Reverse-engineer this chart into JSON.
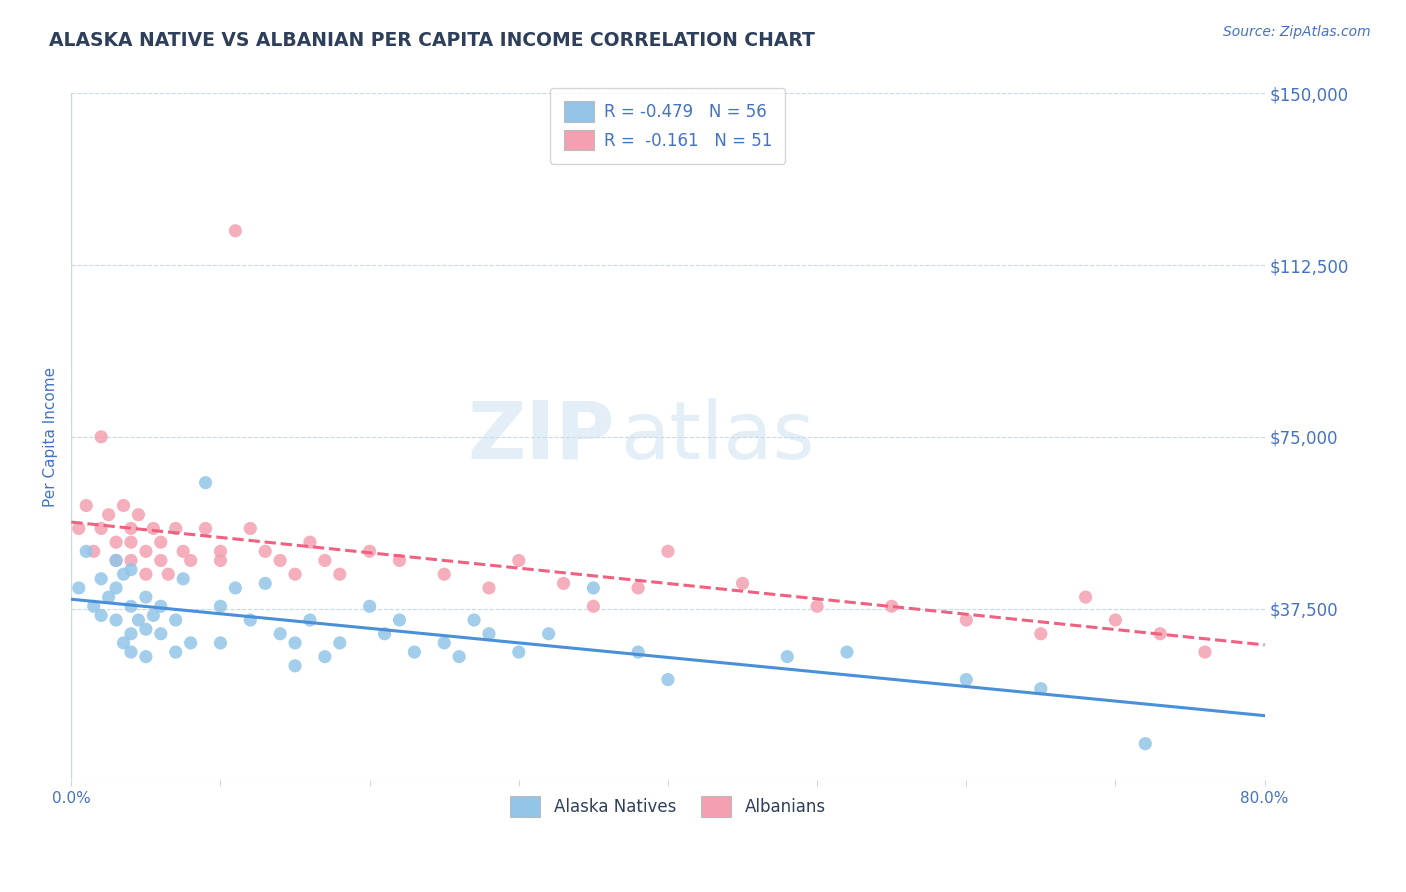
{
  "title": "ALASKA NATIVE VS ALBANIAN PER CAPITA INCOME CORRELATION CHART",
  "source_text": "Source: ZipAtlas.com",
  "watermark_zip": "ZIP",
  "watermark_atlas": "atlas",
  "xlabel": "",
  "ylabel": "Per Capita Income",
  "xlim": [
    0.0,
    0.8
  ],
  "ylim": [
    0,
    150000
  ],
  "yticks": [
    0,
    37500,
    75000,
    112500,
    150000
  ],
  "ytick_labels": [
    "",
    "$37,500",
    "$75,000",
    "$112,500",
    "$150,000"
  ],
  "xticks": [
    0.0,
    0.1,
    0.2,
    0.3,
    0.4,
    0.5,
    0.6,
    0.7,
    0.8
  ],
  "xtick_labels": [
    "0.0%",
    "",
    "",
    "",
    "",
    "",
    "",
    "",
    "80.0%"
  ],
  "alaska_color": "#92c5e8",
  "albanian_color": "#f4a0b0",
  "alaska_line_color": "#4a90d9",
  "albanian_line_color": "#f06080",
  "axis_color": "#4472c4",
  "title_color": "#2e3f5c",
  "grid_color": "#c8d8e8",
  "background_color": "#ffffff",
  "legend_text_color": "#4472c4",
  "R_alaska": -0.479,
  "N_alaska": 56,
  "R_albanian": -0.161,
  "N_albanian": 51,
  "alaska_x": [
    0.005,
    0.01,
    0.015,
    0.02,
    0.02,
    0.025,
    0.03,
    0.03,
    0.03,
    0.035,
    0.035,
    0.04,
    0.04,
    0.04,
    0.04,
    0.045,
    0.05,
    0.05,
    0.05,
    0.055,
    0.06,
    0.06,
    0.07,
    0.07,
    0.075,
    0.08,
    0.09,
    0.1,
    0.1,
    0.11,
    0.12,
    0.13,
    0.14,
    0.15,
    0.15,
    0.16,
    0.17,
    0.18,
    0.2,
    0.21,
    0.22,
    0.23,
    0.25,
    0.26,
    0.27,
    0.28,
    0.3,
    0.32,
    0.35,
    0.38,
    0.4,
    0.48,
    0.52,
    0.6,
    0.65,
    0.72
  ],
  "alaska_y": [
    42000,
    50000,
    38000,
    44000,
    36000,
    40000,
    35000,
    48000,
    42000,
    30000,
    45000,
    38000,
    32000,
    46000,
    28000,
    35000,
    40000,
    33000,
    27000,
    36000,
    32000,
    38000,
    35000,
    28000,
    44000,
    30000,
    65000,
    38000,
    30000,
    42000,
    35000,
    43000,
    32000,
    25000,
    30000,
    35000,
    27000,
    30000,
    38000,
    32000,
    35000,
    28000,
    30000,
    27000,
    35000,
    32000,
    28000,
    32000,
    42000,
    28000,
    22000,
    27000,
    28000,
    22000,
    20000,
    8000
  ],
  "albanian_x": [
    0.005,
    0.01,
    0.015,
    0.02,
    0.02,
    0.025,
    0.03,
    0.03,
    0.035,
    0.04,
    0.04,
    0.04,
    0.045,
    0.05,
    0.05,
    0.055,
    0.06,
    0.06,
    0.065,
    0.07,
    0.075,
    0.08,
    0.09,
    0.1,
    0.1,
    0.11,
    0.12,
    0.13,
    0.14,
    0.15,
    0.16,
    0.17,
    0.18,
    0.2,
    0.22,
    0.25,
    0.28,
    0.3,
    0.33,
    0.35,
    0.38,
    0.4,
    0.45,
    0.5,
    0.55,
    0.6,
    0.65,
    0.68,
    0.7,
    0.73,
    0.76
  ],
  "albanian_y": [
    55000,
    60000,
    50000,
    75000,
    55000,
    58000,
    52000,
    48000,
    60000,
    55000,
    48000,
    52000,
    58000,
    50000,
    45000,
    55000,
    48000,
    52000,
    45000,
    55000,
    50000,
    48000,
    55000,
    50000,
    48000,
    120000,
    55000,
    50000,
    48000,
    45000,
    52000,
    48000,
    45000,
    50000,
    48000,
    45000,
    42000,
    48000,
    43000,
    38000,
    42000,
    50000,
    43000,
    38000,
    38000,
    35000,
    32000,
    40000,
    35000,
    32000,
    28000
  ]
}
